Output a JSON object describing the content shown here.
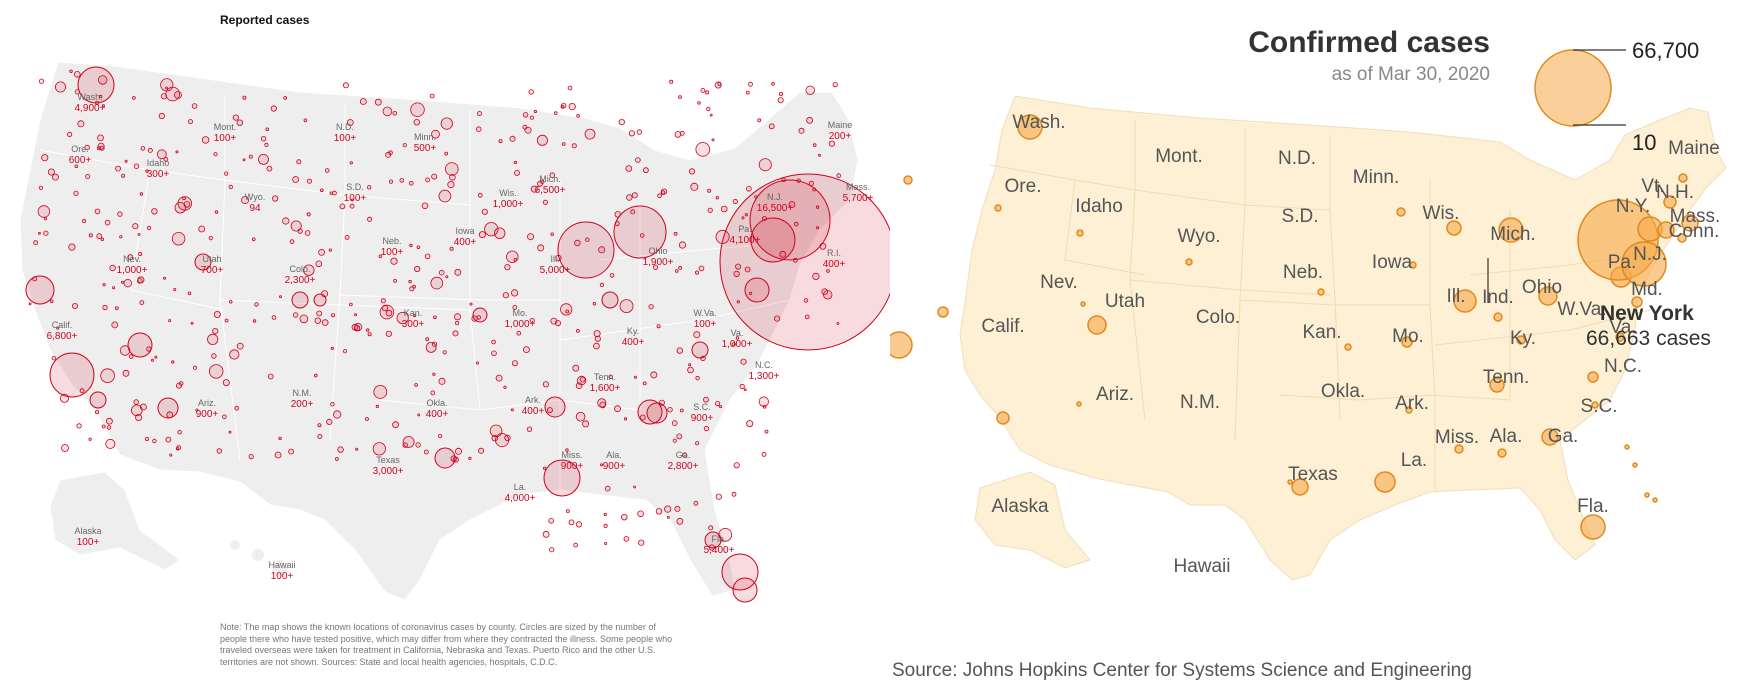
{
  "left_map": {
    "title": "Reported cases",
    "note": "Note: The map shows the known locations of coronavirus cases by county. Circles are sized by the number of people there who have tested positive, which may differ from where they contracted the illness. Some people who traveled overseas were taken for treatment in California, Nebraska and Texas. Puerto Rico and the other U.S. territories are not shown. Sources: State and local health agencies, hospitals, C.D.C.",
    "colors": {
      "land": "#eeeeee",
      "border": "#ffffff",
      "bubble": "#d0021b"
    },
    "states": [
      {
        "name": "Wash.",
        "count": "4,900+"
      },
      {
        "name": "Ore.",
        "count": "600+"
      },
      {
        "name": "Idaho",
        "count": "300+"
      },
      {
        "name": "Mont.",
        "count": "100+"
      },
      {
        "name": "N.D.",
        "count": "100+"
      },
      {
        "name": "Minn.",
        "count": "500+"
      },
      {
        "name": "Wyo.",
        "count": "94"
      },
      {
        "name": "S.D.",
        "count": "100+"
      },
      {
        "name": "Wis.",
        "count": "1,000+"
      },
      {
        "name": "Mich.",
        "count": "6,500+"
      },
      {
        "name": "Maine",
        "count": "200+"
      },
      {
        "name": "Mass.",
        "count": "5,700+"
      },
      {
        "name": "Nev.",
        "count": "1,000+"
      },
      {
        "name": "Utah",
        "count": "700+"
      },
      {
        "name": "Colo.",
        "count": "2,300+"
      },
      {
        "name": "Neb.",
        "count": "100+"
      },
      {
        "name": "Iowa",
        "count": "400+"
      },
      {
        "name": "Ill.",
        "count": "5,000+"
      },
      {
        "name": "Ohio",
        "count": "1,900+"
      },
      {
        "name": "Pa.",
        "count": "4,100+"
      },
      {
        "name": "N.J.",
        "count": "16,500+"
      },
      {
        "name": "R.I.",
        "count": "400+"
      },
      {
        "name": "Calif.",
        "count": "6,800+"
      },
      {
        "name": "Kan.",
        "count": "300+"
      },
      {
        "name": "Mo.",
        "count": "1,000+"
      },
      {
        "name": "Ky.",
        "count": "400+"
      },
      {
        "name": "W.Va.",
        "count": "100+"
      },
      {
        "name": "Va.",
        "count": "1,000+"
      },
      {
        "name": "N.C.",
        "count": "1,300+"
      },
      {
        "name": "Tenn.",
        "count": "1,600+"
      },
      {
        "name": "Ariz.",
        "count": "900+"
      },
      {
        "name": "N.M.",
        "count": "200+"
      },
      {
        "name": "Okla.",
        "count": "400+"
      },
      {
        "name": "Ark.",
        "count": "400+"
      },
      {
        "name": "S.C.",
        "count": "900+"
      },
      {
        "name": "Miss.",
        "count": "900+"
      },
      {
        "name": "Ala.",
        "count": "900+"
      },
      {
        "name": "Ga.",
        "count": "2,800+"
      },
      {
        "name": "Texas",
        "count": "3,000+"
      },
      {
        "name": "La.",
        "count": "4,000+"
      },
      {
        "name": "Fla.",
        "count": "5,400+"
      },
      {
        "name": "Alaska",
        "count": "100+"
      },
      {
        "name": "Hawaii",
        "count": "100+"
      }
    ]
  },
  "right_map": {
    "title": "Confirmed cases",
    "subtitle": "as of Mar 30, 2020",
    "legend": {
      "max_label": "66,700",
      "min_label": "10"
    },
    "highlight": {
      "name": "New York",
      "cases": "66,663 cases"
    },
    "source": "Source: Johns Hopkins Center for Systems Science and Engineering",
    "colors": {
      "land": "#fdf0d5",
      "border": "#f1dfba",
      "bubble": "#f7a847",
      "bubble_stroke": "#e08a1e"
    },
    "labels": [
      "Washington",
      "Oregon",
      "California",
      "Idaho",
      "Nevada",
      "Montana",
      "Wyoming",
      "Utah",
      "Colorado",
      "Arizona",
      "New Mexico",
      "North Dakota",
      "South Dakota",
      "Nebraska",
      "Kansas",
      "Oklahoma",
      "Texas",
      "Minnesota",
      "Iowa",
      "Missouri",
      "Arkansas",
      "Louisiana",
      "Wisconsin",
      "Illinois",
      "Michigan",
      "Indiana",
      "Ohio",
      "Kentucky",
      "Tennessee",
      "Mississippi",
      "Alabama",
      "Georgia",
      "Florida",
      "South Carolina",
      "North Carolina",
      "Virginia",
      "West Virginia",
      "Pennsylvania",
      "New York",
      "Vermont",
      "New Hampshire",
      "Maine",
      "Massachusetts",
      "Connecticut",
      "New Jersey",
      "Maryland",
      "Alaska",
      "Hawaii"
    ],
    "label_text": [
      "Wash.",
      "Ore.",
      "Calif.",
      "Idaho",
      "Nev.",
      "Mont.",
      "Wyo.",
      "Utah",
      "Colo.",
      "Ariz.",
      "N.M.",
      "N.D.",
      "S.D.",
      "Neb.",
      "Kan.",
      "Okla.",
      "Texas",
      "Minn.",
      "Iowa",
      "Mo.",
      "Ark.",
      "La.",
      "Wis.",
      "Ill.",
      "Mich.",
      "Ind.",
      "Ohio",
      "Ky.",
      "Tenn.",
      "Miss.",
      "Ala.",
      "Ga.",
      "Fla.",
      "S.C.",
      "N.C.",
      "Va.",
      "W.Va.",
      "Pa.",
      "N.Y.",
      "Vt.",
      "N.H.",
      "Maine",
      "Mass.",
      "Conn.",
      "N.J.",
      "Md.",
      "Alaska",
      "Hawaii"
    ]
  }
}
